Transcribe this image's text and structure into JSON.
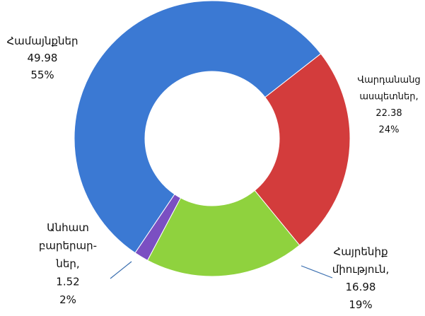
{
  "chart_data": {
    "type": "donut",
    "categories": [
      [
        "Վարդանանց",
        "ասպետներ,"
      ],
      [
        "Հայրենիք",
        "միություն,"
      ],
      [
        "Անհատ",
        "բարերար-",
        "ներ,"
      ],
      [
        "Համայնքներ"
      ]
    ],
    "values": [
      22.38,
      16.98,
      1.52,
      49.98
    ],
    "percent_labels": [
      "24%",
      "19%",
      "2%",
      "55%"
    ],
    "colors": [
      "#d33c3c",
      "#8fd23e",
      "#7b4fc2",
      "#3b79d3"
    ]
  }
}
